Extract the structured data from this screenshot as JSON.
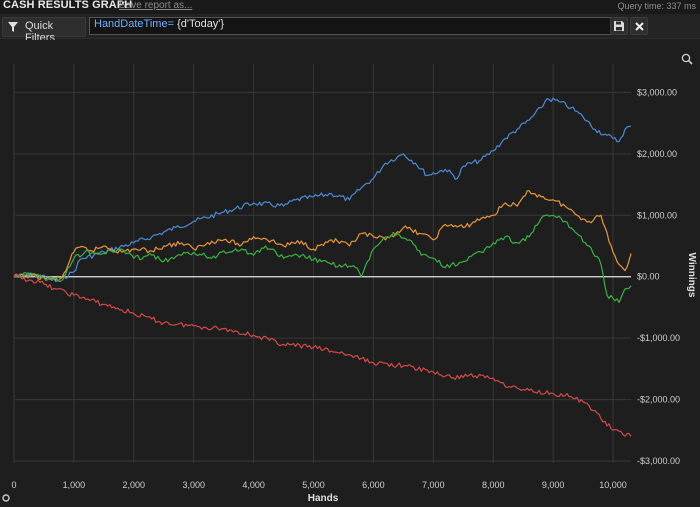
{
  "header": {
    "title": "CASH RESULTS GRAPH",
    "save_link": "Save report as...",
    "query_time": "Query time: 337 ms"
  },
  "filter_bar": {
    "quick_filters_label": "Quick Filters",
    "filter_value_prefix": "HandDateTime= ",
    "filter_value_suffix": "{d'Today'}",
    "save_icon": "floppy-disk-icon",
    "close_icon": "close-icon",
    "zoom_icon": "magnifier-icon"
  },
  "chart_data": {
    "type": "line",
    "xlabel": "Hands",
    "ylabel": "Winnings",
    "xlim": [
      0,
      10300
    ],
    "ylim": [
      -3000,
      3300
    ],
    "x_ticks": [
      "0",
      "1,000",
      "2,000",
      "3,000",
      "4,000",
      "5,000",
      "6,000",
      "7,000",
      "8,000",
      "9,000",
      "10,000"
    ],
    "y_ticks": [
      "$3,000.00",
      "$2,000.00",
      "$1,000.00",
      "$0.00",
      "-$1,000.00",
      "-$2,000.00",
      "-$3,000.00"
    ],
    "grid": true,
    "colors": {
      "blue": "#4b8bd6",
      "orange": "#e8963a",
      "green": "#3bb045",
      "red": "#d24a4a",
      "zero_line": "#e6e6e6",
      "grid": "#383838"
    },
    "series": [
      {
        "color": "#4b8bd6",
        "x": [
          0,
          300,
          600,
          700,
          1000,
          1100,
          1500,
          2000,
          2300,
          2700,
          3000,
          3500,
          4000,
          4500,
          4700,
          5000,
          5300,
          5600,
          5800,
          6000,
          6200,
          6400,
          6500,
          6700,
          6900,
          7200,
          7400,
          7500,
          7800,
          8000,
          8200,
          8400,
          8600,
          8800,
          8900,
          9100,
          9300,
          9500,
          9700,
          9900,
          10000,
          10100,
          10200,
          10300
        ],
        "y": [
          0,
          40,
          -30,
          -80,
          80,
          280,
          400,
          550,
          650,
          800,
          900,
          1050,
          1200,
          1150,
          1250,
          1300,
          1350,
          1250,
          1450,
          1600,
          1850,
          1950,
          2000,
          1850,
          1650,
          1750,
          1600,
          1800,
          1900,
          2050,
          2250,
          2400,
          2550,
          2750,
          2900,
          2850,
          2750,
          2600,
          2400,
          2300,
          2250,
          2200,
          2400,
          2450
        ]
      },
      {
        "color": "#e8963a",
        "x": [
          0,
          300,
          600,
          800,
          1000,
          1100,
          1300,
          1500,
          1800,
          2000,
          2300,
          2500,
          2800,
          3000,
          3300,
          3500,
          3800,
          4000,
          4200,
          4500,
          4800,
          5000,
          5300,
          5600,
          5800,
          6000,
          6200,
          6500,
          6800,
          7000,
          7200,
          7500,
          7800,
          8000,
          8200,
          8400,
          8600,
          8800,
          9000,
          9200,
          9400,
          9600,
          9800,
          10000,
          10100,
          10200,
          10300
        ],
        "y": [
          0,
          20,
          -40,
          -20,
          400,
          480,
          420,
          500,
          400,
          450,
          420,
          500,
          550,
          450,
          580,
          600,
          520,
          650,
          620,
          500,
          580,
          450,
          600,
          500,
          700,
          650,
          600,
          800,
          700,
          600,
          850,
          800,
          950,
          1000,
          1200,
          1150,
          1400,
          1300,
          1250,
          1150,
          1000,
          900,
          1000,
          400,
          200,
          100,
          380
        ]
      },
      {
        "color": "#3bb045",
        "x": [
          0,
          300,
          500,
          800,
          1000,
          1200,
          1500,
          1800,
          2000,
          2300,
          2500,
          2800,
          3000,
          3300,
          3500,
          3800,
          4000,
          4200,
          4500,
          4800,
          5000,
          5300,
          5500,
          5700,
          5800,
          6000,
          6200,
          6400,
          6600,
          6800,
          7000,
          7200,
          7500,
          7800,
          8000,
          8200,
          8400,
          8600,
          8800,
          9000,
          9200,
          9400,
          9600,
          9800,
          9900,
          10000,
          10100,
          10200,
          10300
        ],
        "y": [
          0,
          50,
          -20,
          -60,
          300,
          420,
          380,
          450,
          300,
          350,
          250,
          350,
          400,
          300,
          420,
          450,
          350,
          500,
          300,
          350,
          280,
          200,
          180,
          150,
          0,
          450,
          650,
          700,
          600,
          350,
          300,
          150,
          250,
          400,
          550,
          650,
          550,
          650,
          950,
          1000,
          900,
          700,
          500,
          200,
          -300,
          -350,
          -420,
          -200,
          -150
        ]
      },
      {
        "color": "#d24a4a",
        "x": [
          0,
          300,
          500,
          700,
          1000,
          1500,
          2000,
          2500,
          3000,
          3500,
          4000,
          4500,
          5000,
          5500,
          6000,
          6500,
          7000,
          7300,
          7600,
          8000,
          8300,
          8600,
          9000,
          9300,
          9600,
          10000,
          10300
        ],
        "y": [
          0,
          -60,
          -120,
          -200,
          -300,
          -450,
          -600,
          -750,
          -800,
          -850,
          -950,
          -1100,
          -1150,
          -1250,
          -1400,
          -1450,
          -1550,
          -1650,
          -1600,
          -1650,
          -1800,
          -1850,
          -1900,
          -1950,
          -2100,
          -2500,
          -2600
        ]
      }
    ]
  }
}
